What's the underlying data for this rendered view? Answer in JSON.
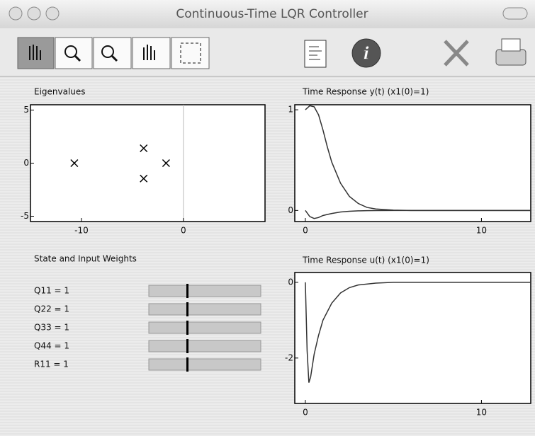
{
  "window_title": "Continuous-Time LQR Controller",
  "weights": {
    "title": "State and Input Weights",
    "items": [
      "Q11 = 1",
      "Q22 = 1",
      "Q33 = 1",
      "Q44 = 1",
      "R11 = 1"
    ]
  },
  "chart_data": [
    {
      "type": "scatter",
      "title": "Eigenvalues",
      "marker": "x",
      "color": "#000000",
      "x": [
        -10.7,
        -3.9,
        -3.9,
        -1.7
      ],
      "values": [
        0,
        1.4,
        -1.45,
        0
      ],
      "xlim": [
        -15,
        8
      ],
      "xticks": [
        -10,
        0
      ],
      "ylim": [
        -5.5,
        5.5
      ],
      "yticks": [
        -5,
        0,
        5
      ]
    },
    {
      "type": "line",
      "title": "Time Response y(t) (x1(0)=1)",
      "x": [
        0,
        0.25,
        0.5,
        0.75,
        1,
        1.25,
        1.5,
        2,
        2.5,
        3,
        3.5,
        4,
        5,
        6,
        8,
        10,
        12.8
      ],
      "series": [
        {
          "color": "#333333",
          "values": [
            1,
            1.04,
            1.03,
            0.95,
            0.8,
            0.63,
            0.48,
            0.27,
            0.14,
            0.07,
            0.03,
            0.015,
            0.003,
            0,
            0,
            0,
            0
          ]
        },
        {
          "color": "#333333",
          "values": [
            0,
            -0.06,
            -0.08,
            -0.07,
            -0.05,
            -0.04,
            -0.03,
            -0.015,
            -0.008,
            -0.004,
            -0.002,
            -0.001,
            0,
            0,
            0,
            0,
            0
          ]
        }
      ],
      "xlim": [
        -0.6,
        12.8
      ],
      "xticks": [
        0,
        10
      ],
      "ylim": [
        -0.11,
        1.05
      ],
      "yticks": [
        0,
        1
      ]
    },
    {
      "type": "line",
      "title": "Time Response u(t) (x1(0)=1)",
      "x": [
        0,
        0.1,
        0.2,
        0.3,
        0.5,
        0.75,
        1,
        1.5,
        2,
        2.5,
        3,
        4,
        5,
        8,
        12.8
      ],
      "series": [
        {
          "color": "#333333",
          "values": [
            0,
            -1.8,
            -2.65,
            -2.5,
            -1.9,
            -1.4,
            -1.0,
            -0.55,
            -0.28,
            -0.14,
            -0.07,
            -0.02,
            0,
            0,
            0
          ]
        }
      ],
      "xlim": [
        -0.6,
        12.8
      ],
      "xticks": [
        0,
        10
      ],
      "ylim": [
        -3.2,
        0.26
      ],
      "yticks": [
        -2,
        0
      ]
    }
  ]
}
